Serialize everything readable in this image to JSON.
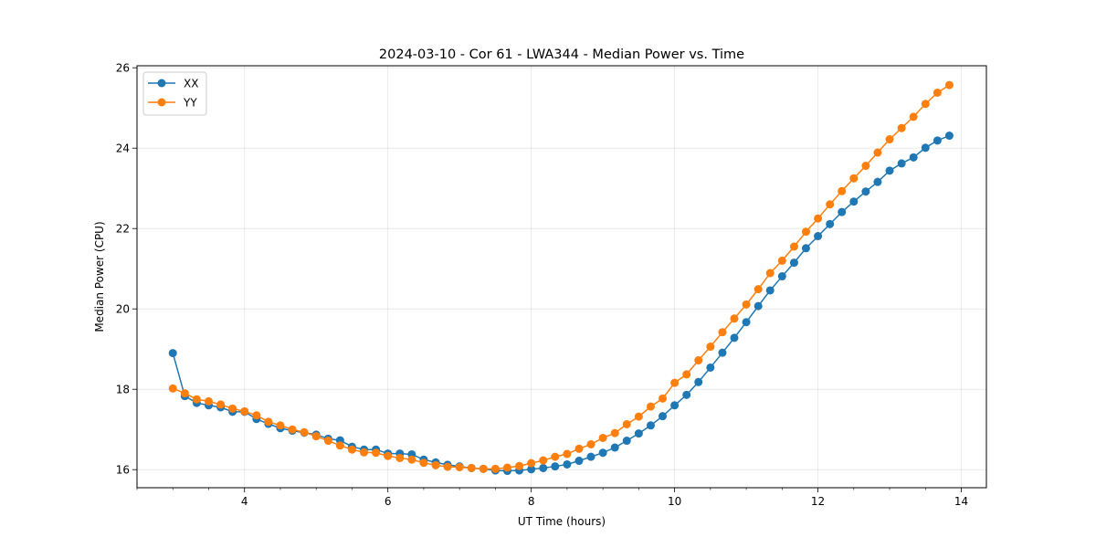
{
  "chart_data": {
    "type": "line",
    "title": "2024-03-10 - Cor 61 - LWA344 - Median Power vs. Time",
    "xlabel": "UT Time (hours)",
    "ylabel": "Median Power (CPU)",
    "xlim": [
      2.5,
      14.35
    ],
    "ylim": [
      15.55,
      26.05
    ],
    "xticks": [
      4,
      6,
      8,
      10,
      12,
      14
    ],
    "xtick_labels": [
      "4",
      "6",
      "8",
      "10",
      "12",
      "14"
    ],
    "yticks": [
      16,
      18,
      20,
      22,
      24,
      26
    ],
    "ytick_labels": [
      "16",
      "18",
      "20",
      "22",
      "24",
      "26"
    ],
    "grid": true,
    "legend_position": "top-left",
    "x": [
      3.0,
      3.167,
      3.333,
      3.5,
      3.667,
      3.833,
      4.0,
      4.167,
      4.333,
      4.5,
      4.667,
      4.833,
      5.0,
      5.167,
      5.333,
      5.5,
      5.667,
      5.833,
      6.0,
      6.167,
      6.333,
      6.5,
      6.667,
      6.833,
      7.0,
      7.167,
      7.333,
      7.5,
      7.667,
      7.833,
      8.0,
      8.167,
      8.333,
      8.5,
      8.667,
      8.833,
      9.0,
      9.167,
      9.333,
      9.5,
      9.667,
      9.833,
      10.0,
      10.167,
      10.333,
      10.5,
      10.667,
      10.833,
      11.0,
      11.167,
      11.333,
      11.5,
      11.667,
      11.833,
      12.0,
      12.167,
      12.333,
      12.5,
      12.667,
      12.833,
      13.0,
      13.167,
      13.333,
      13.5,
      13.667,
      13.833
    ],
    "series": [
      {
        "name": "XX",
        "color": "#1f77b4",
        "values": [
          18.9,
          17.83,
          17.66,
          17.6,
          17.55,
          17.44,
          17.44,
          17.26,
          17.14,
          17.03,
          16.97,
          16.92,
          16.87,
          16.77,
          16.73,
          16.57,
          16.5,
          16.5,
          16.4,
          16.4,
          16.38,
          16.25,
          16.18,
          16.12,
          16.08,
          16.04,
          16.02,
          15.98,
          15.97,
          15.98,
          16.01,
          16.04,
          16.08,
          16.13,
          16.22,
          16.32,
          16.42,
          16.55,
          16.72,
          16.9,
          17.1,
          17.33,
          17.6,
          17.86,
          18.18,
          18.54,
          18.91,
          19.28,
          19.67,
          20.07,
          20.46,
          20.81,
          21.15,
          21.51,
          21.81,
          22.11,
          22.41,
          22.67,
          22.92,
          23.16,
          23.44,
          23.62,
          23.77,
          24.01,
          24.19,
          24.31
        ]
      },
      {
        "name": "YY",
        "color": "#ff7f0e",
        "values": [
          18.02,
          17.9,
          17.75,
          17.7,
          17.62,
          17.52,
          17.45,
          17.35,
          17.19,
          17.1,
          17.0,
          16.93,
          16.83,
          16.72,
          16.6,
          16.5,
          16.43,
          16.42,
          16.34,
          16.29,
          16.25,
          16.17,
          16.11,
          16.07,
          16.06,
          16.04,
          16.02,
          16.02,
          16.05,
          16.09,
          16.16,
          16.23,
          16.32,
          16.39,
          16.52,
          16.63,
          16.79,
          16.91,
          17.13,
          17.32,
          17.57,
          17.77,
          18.16,
          18.37,
          18.72,
          19.06,
          19.42,
          19.76,
          20.11,
          20.49,
          20.89,
          21.2,
          21.55,
          21.92,
          22.25,
          22.6,
          22.93,
          23.25,
          23.56,
          23.89,
          24.22,
          24.5,
          24.78,
          25.1,
          25.38,
          25.57
        ]
      }
    ]
  }
}
